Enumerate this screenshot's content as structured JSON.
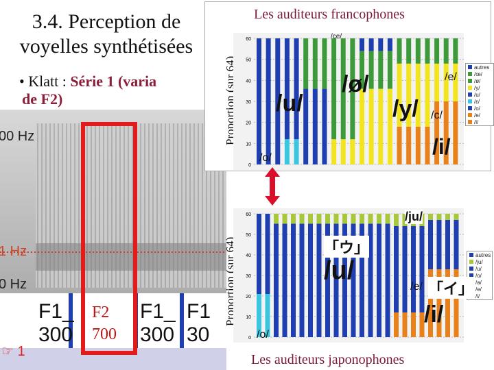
{
  "slide": {
    "title": "3.4. Perception de voyelles synthétisées",
    "bullet_prefix": "• Klatt : ",
    "bullet_highlight": "Série 1 (varia",
    "bullet_line2": "de F2)"
  },
  "spectrogram": {
    "hz_labels": [
      "00 Hz",
      "1 Hz",
      "0 Hz"
    ],
    "cells_top": [
      "F1_",
      "F1_",
      "F1"
    ],
    "cells_bottom": [
      "300",
      "300",
      "30"
    ],
    "f2_label_line1": "F2",
    "f2_label_line2": "700",
    "page_number": "1"
  },
  "french_panel": {
    "header": "Les auditeurs francophones",
    "y_axis_label": "Proportion (sur 64)",
    "y_ticks": [
      "60",
      "50",
      "40",
      "30",
      "20",
      "10",
      "0"
    ],
    "top_label": "/ce/",
    "vowel_labels": {
      "u": "/u/",
      "oe": "/ø/",
      "y": "/y/",
      "i": "/i/",
      "o": "/o/",
      "e": "/e/",
      "c": "/c/"
    },
    "legend": [
      "autres",
      "/œ/",
      "/ø/",
      "/y/",
      "/u/",
      "/ɛ/",
      "/o/",
      "/e/",
      "/i/"
    ]
  },
  "japanese_panel": {
    "header": "Les auditeurs japonophones",
    "y_axis_label": "Proportion (sur 64)",
    "y_ticks": [
      "60",
      "50",
      "40",
      "30",
      "20",
      "10",
      "0"
    ],
    "vowel_labels": {
      "ju": "/ju/",
      "u": "/u/",
      "e": "/e/",
      "i": "/i/",
      "o": "/o/"
    },
    "kana_u": "「ウ」",
    "kana_i": "「イ」",
    "legend": [
      "autres",
      "/ju/",
      "/u/",
      "/o/",
      "/a/",
      "/e/",
      "/i/"
    ]
  },
  "colors": {
    "blue": "#1f3fb0",
    "green": "#3d9a3a",
    "yellow": "#f2e520",
    "orange": "#e8811a",
    "cyan": "#3bc6e0",
    "lime": "#a6c83a",
    "red": "#e21b1b",
    "arrow": "#d8102a"
  }
}
